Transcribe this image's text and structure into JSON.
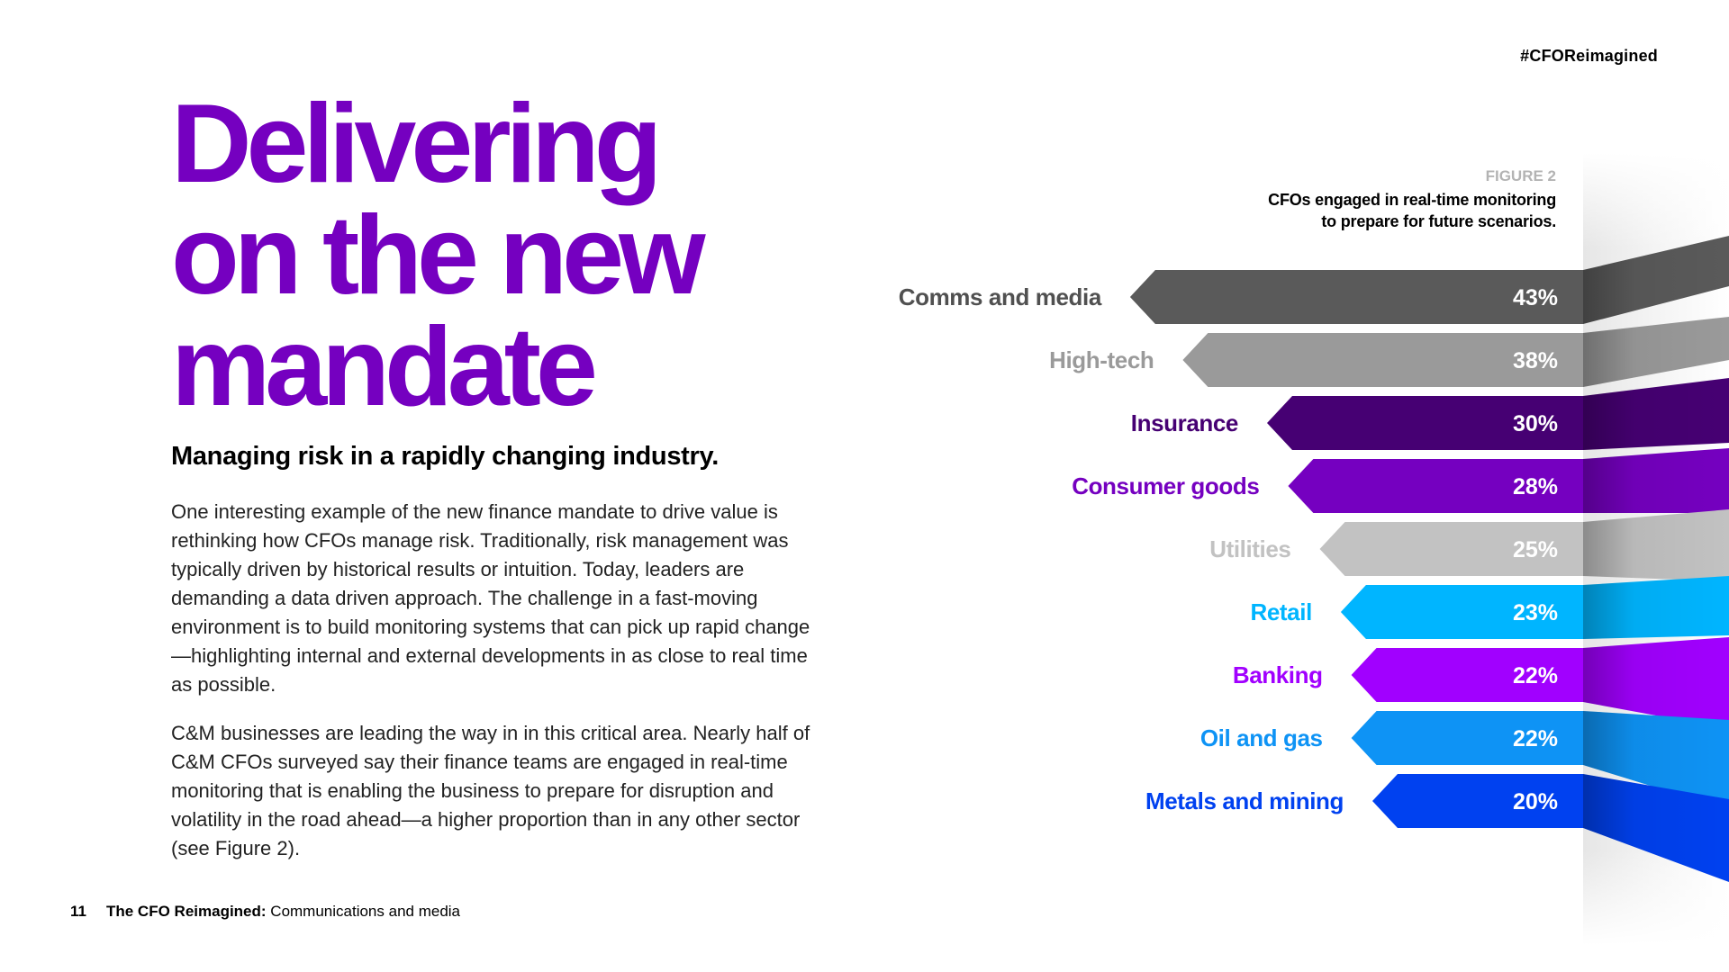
{
  "hashtag": "#CFOReimagined",
  "headline": {
    "line1": "Delivering",
    "line2": "on the new",
    "line3": "mandate"
  },
  "subhead": "Managing risk in a rapidly changing industry.",
  "paragraphs": [
    "One interesting example of the new finance mandate to drive value is rethinking how CFOs manage risk. Traditionally, risk management was typically driven by historical results or intuition. Today, leaders are demanding a data driven approach. The challenge in a fast-moving environment is to build monitoring systems that can pick up rapid change—highlighting internal and external developments in as close to real time as possible.",
    "C&M businesses are leading the way in in this critical area. Nearly half of C&M CFOs surveyed say their finance teams are engaged in real-time monitoring that is enabling the business to prepare for disruption and volatility in the road ahead—a higher proportion than in any other sector (see Figure 2)."
  ],
  "footer": {
    "page_number": "11",
    "title_bold": "The CFO Reimagined:",
    "title_rest": " Communications and media"
  },
  "figure": {
    "label": "FIGURE 2",
    "caption_line1": "CFOs engaged in real-time monitoring",
    "caption_line2": "to prepare for future scenarios."
  },
  "chart_data": {
    "type": "bar",
    "orientation": "horizontal",
    "title": "CFOs engaged in real-time monitoring to prepare for future scenarios.",
    "categories": [
      "Comms and media",
      "High-tech",
      "Insurance",
      "Consumer goods",
      "Utilities",
      "Retail",
      "Banking",
      "Oil and gas",
      "Metals and mining"
    ],
    "values": [
      43,
      38,
      30,
      28,
      25,
      23,
      22,
      22,
      20
    ],
    "value_labels": [
      "43%",
      "38%",
      "30%",
      "28%",
      "25%",
      "23%",
      "22%",
      "22%",
      "20%"
    ],
    "unit": "%",
    "colors": [
      "#5a5a5a",
      "#9a9a9a",
      "#460073",
      "#7500c0",
      "#c2c2c2",
      "#00b5ff",
      "#a100ff",
      "#0e93f5",
      "#0041f0"
    ],
    "label_colors": [
      "#505050",
      "#9a9a9a",
      "#460073",
      "#7500c0",
      "#c2c2c2",
      "#00b5ff",
      "#a100ff",
      "#0e93f5",
      "#0041f0"
    ],
    "grid": false,
    "legend": "none"
  }
}
